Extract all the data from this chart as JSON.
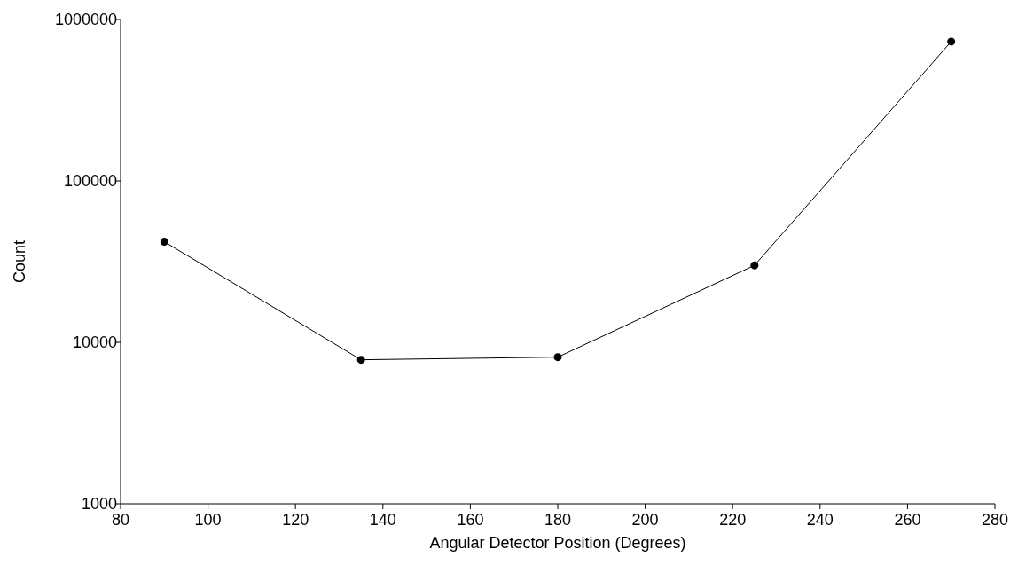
{
  "chart_data": {
    "type": "line",
    "xlabel": "Angular Detector Position (Degrees)",
    "ylabel": "Count",
    "x": [
      90,
      135,
      180,
      225,
      270
    ],
    "series": [
      {
        "color": "#000000",
        "values": [
          42000,
          7800,
          8100,
          30000,
          730000
        ]
      }
    ],
    "xlim": [
      80,
      280
    ],
    "xticks": [
      80,
      100,
      120,
      140,
      160,
      180,
      200,
      220,
      240,
      260,
      280
    ],
    "ylim": [
      1000,
      1000000
    ],
    "yticks": [
      1000,
      10000,
      100000,
      1000000
    ],
    "log": "y",
    "grid": false,
    "marker": "circle",
    "line_style": "solid"
  }
}
